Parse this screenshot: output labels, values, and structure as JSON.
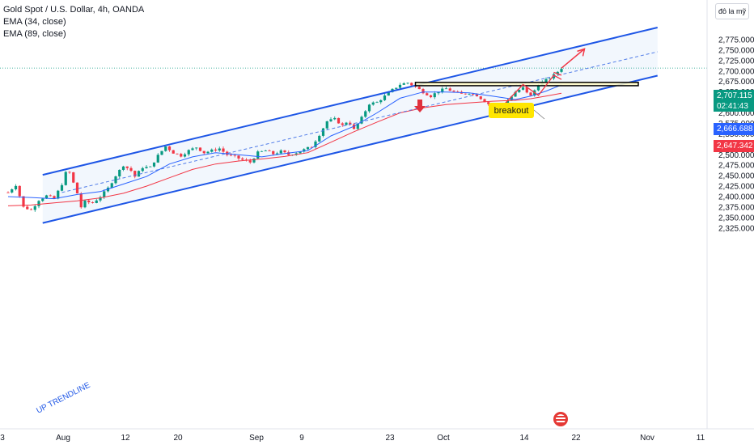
{
  "header": {
    "symbol_line": "Gold Spot / U.S. Dollar, 4h, OANDA",
    "ema1_label": "EMA (34, close)",
    "ema2_label": "EMA (89, close)",
    "currency_button": "đô la mỹ"
  },
  "price_tags": {
    "last_price": "2,707.115",
    "countdown": "02:41:43",
    "ema34_value": "2,666.688",
    "ema89_value": "2,647.342",
    "last_color": "#089981",
    "ema34_color": "#2962ff",
    "ema89_color": "#f23645"
  },
  "annotations": {
    "breakout_label": "breakout",
    "trendline_label": "UP TRENDLINE"
  },
  "chart_data": {
    "type": "candlestick",
    "title": "Gold Spot / U.S. Dollar, 4h, OANDA",
    "x_tick_labels": [
      "3",
      "Aug",
      "12",
      "20",
      "Sep",
      "9",
      "23",
      "Oct",
      "14",
      "22",
      "Nov",
      "11"
    ],
    "y_ticks": [
      2325,
      2350,
      2375,
      2400,
      2425,
      2450,
      2475,
      2500,
      2525,
      2550,
      2575,
      2600,
      2625,
      2650,
      2675,
      2700,
      2725,
      2750,
      2775
    ],
    "ylim": [
      2312,
      2795
    ],
    "grid": false,
    "close_path": [
      [
        0,
        2410
      ],
      [
        2,
        2428
      ],
      [
        4,
        2375
      ],
      [
        6,
        2368
      ],
      [
        8,
        2392
      ],
      [
        10,
        2402
      ],
      [
        12,
        2395
      ],
      [
        14,
        2430
      ],
      [
        15.5,
        2470
      ],
      [
        16.5,
        2445
      ],
      [
        18,
        2408
      ],
      [
        19,
        2375
      ],
      [
        20,
        2388
      ],
      [
        22,
        2385
      ],
      [
        24,
        2400
      ],
      [
        26,
        2420
      ],
      [
        28,
        2450
      ],
      [
        30,
        2475
      ],
      [
        32,
        2462
      ],
      [
        33,
        2448
      ],
      [
        35,
        2470
      ],
      [
        37,
        2470
      ],
      [
        39,
        2498
      ],
      [
        41,
        2520
      ],
      [
        43,
        2505
      ],
      [
        45,
        2498
      ],
      [
        47,
        2510
      ],
      [
        49,
        2518
      ],
      [
        51,
        2505
      ],
      [
        53,
        2510
      ],
      [
        55,
        2515
      ],
      [
        57,
        2500
      ],
      [
        59,
        2495
      ],
      [
        61,
        2488
      ],
      [
        63,
        2482
      ],
      [
        65,
        2505
      ],
      [
        67,
        2510
      ],
      [
        69,
        2502
      ],
      [
        71,
        2508
      ],
      [
        73,
        2500
      ],
      [
        75,
        2505
      ],
      [
        77,
        2512
      ],
      [
        79,
        2520
      ],
      [
        81,
        2548
      ],
      [
        83,
        2580
      ],
      [
        85,
        2585
      ],
      [
        87,
        2570
      ],
      [
        88.5,
        2582
      ],
      [
        90,
        2560
      ],
      [
        92,
        2588
      ],
      [
        94,
        2622
      ],
      [
        96,
        2625
      ],
      [
        98,
        2640
      ],
      [
        100,
        2655
      ],
      [
        102,
        2668
      ],
      [
        104,
        2672
      ],
      [
        106,
        2662
      ],
      [
        108,
        2650
      ],
      [
        110,
        2640
      ],
      [
        112,
        2652
      ],
      [
        114,
        2658
      ],
      [
        116,
        2650
      ],
      [
        118,
        2645
      ],
      [
        120,
        2648
      ],
      [
        122,
        2642
      ],
      [
        124,
        2628
      ],
      [
        126,
        2615
      ],
      [
        128,
        2610
      ],
      [
        130,
        2630
      ],
      [
        132,
        2648
      ],
      [
        134,
        2660
      ],
      [
        136,
        2640
      ],
      [
        138,
        2668
      ],
      [
        140,
        2678
      ],
      [
        142,
        2690
      ],
      [
        144,
        2707
      ]
    ],
    "series": [
      {
        "name": "EMA (34, close)",
        "color": "#2962ff",
        "values": [
          [
            0,
            2400
          ],
          [
            6,
            2398
          ],
          [
            12,
            2395
          ],
          [
            18,
            2405
          ],
          [
            24,
            2412
          ],
          [
            30,
            2430
          ],
          [
            36,
            2448
          ],
          [
            42,
            2478
          ],
          [
            48,
            2495
          ],
          [
            54,
            2505
          ],
          [
            60,
            2500
          ],
          [
            66,
            2495
          ],
          [
            72,
            2503
          ],
          [
            78,
            2510
          ],
          [
            84,
            2545
          ],
          [
            90,
            2568
          ],
          [
            96,
            2600
          ],
          [
            102,
            2635
          ],
          [
            108,
            2650
          ],
          [
            114,
            2650
          ],
          [
            120,
            2648
          ],
          [
            126,
            2640
          ],
          [
            132,
            2632
          ],
          [
            136,
            2640
          ],
          [
            140,
            2652
          ],
          [
            144,
            2667
          ]
        ]
      },
      {
        "name": "EMA (89, close)",
        "color": "#f23645",
        "values": [
          [
            0,
            2378
          ],
          [
            6,
            2380
          ],
          [
            12,
            2385
          ],
          [
            18,
            2390
          ],
          [
            24,
            2397
          ],
          [
            30,
            2408
          ],
          [
            36,
            2425
          ],
          [
            42,
            2445
          ],
          [
            48,
            2465
          ],
          [
            54,
            2478
          ],
          [
            60,
            2485
          ],
          [
            66,
            2490
          ],
          [
            72,
            2496
          ],
          [
            78,
            2505
          ],
          [
            84,
            2530
          ],
          [
            90,
            2555
          ],
          [
            96,
            2578
          ],
          [
            102,
            2600
          ],
          [
            108,
            2612
          ],
          [
            114,
            2620
          ],
          [
            120,
            2624
          ],
          [
            126,
            2628
          ],
          [
            132,
            2630
          ],
          [
            136,
            2634
          ],
          [
            140,
            2640
          ],
          [
            144,
            2647
          ]
        ]
      }
    ],
    "channel": {
      "upper": [
        [
          9,
          2452
        ],
        [
          169,
          2804
        ]
      ],
      "lower": [
        [
          9,
          2337
        ],
        [
          169,
          2689
        ]
      ],
      "mid": [
        [
          14,
          2410
        ],
        [
          169,
          2746
        ]
      ]
    },
    "resistance_zone": {
      "x": [
        106,
        164
      ],
      "y": [
        2665,
        2673
      ]
    },
    "projection": [
      [
        144,
        2707
      ],
      [
        150,
        2753
      ]
    ],
    "current_price": 2707.115
  }
}
